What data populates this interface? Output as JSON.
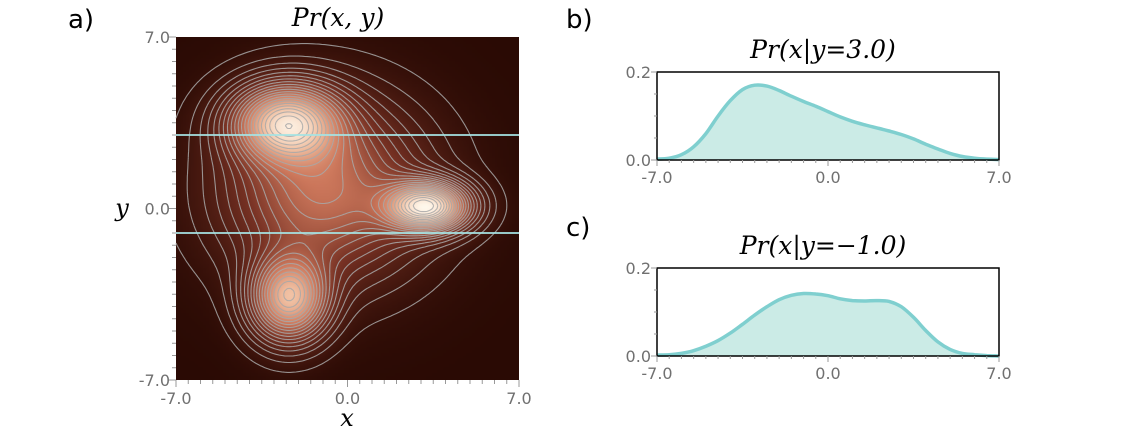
{
  "panels": {
    "a": "a)",
    "b": "b)",
    "c": "c)"
  },
  "chart_data": [
    {
      "id": "a",
      "type": "heatmap",
      "title": "Pr(x, y)",
      "xlabel": "x",
      "ylabel": "y",
      "xlim": [
        -7.0,
        7.0
      ],
      "ylim": [
        -7.0,
        7.0
      ],
      "xticks": [
        "-7.0",
        "0.0",
        "7.0"
      ],
      "yticks": [
        "-7.0",
        "0.0",
        "7.0"
      ],
      "components": [
        {
          "mx": -2.5,
          "my": 3.5,
          "sx": 1.4,
          "sy": 1.0,
          "w": 0.9
        },
        {
          "mx": 3.2,
          "my": 0.1,
          "sx": 1.1,
          "sy": 0.65,
          "w": 1.05
        },
        {
          "mx": -2.4,
          "my": -3.6,
          "sx": 1.0,
          "sy": 1.1,
          "w": 0.8
        },
        {
          "mx": -1.0,
          "my": 0.8,
          "sx": 2.5,
          "sy": 2.2,
          "w": 0.5
        }
      ],
      "slice_lines_y": [
        3.0,
        -1.0
      ],
      "colors": {
        "dark": "#2a0a04",
        "light": "#fff8ec",
        "contour": "#a8a8a8",
        "slice": "#a6e3e3"
      }
    },
    {
      "id": "b",
      "type": "area",
      "title": "Pr(x|y=3.0)",
      "xlim": [
        -7.0,
        7.0
      ],
      "ylim": [
        0.0,
        0.2
      ],
      "xticks": [
        "-7.0",
        "0.0",
        "7.0"
      ],
      "yticks": [
        "0.0",
        "0.2"
      ],
      "x": [
        -7,
        -6.5,
        -6,
        -5.5,
        -5,
        -4.5,
        -4,
        -3.5,
        -3,
        -2.5,
        -2,
        -1.5,
        -1,
        -0.5,
        0,
        0.5,
        1,
        1.5,
        2,
        2.5,
        3,
        3.5,
        4,
        4.5,
        5,
        5.5,
        6,
        6.5,
        7
      ],
      "values": [
        0.002,
        0.004,
        0.012,
        0.03,
        0.06,
        0.1,
        0.135,
        0.16,
        0.17,
        0.168,
        0.158,
        0.145,
        0.133,
        0.122,
        0.11,
        0.098,
        0.088,
        0.08,
        0.073,
        0.066,
        0.058,
        0.048,
        0.036,
        0.025,
        0.015,
        0.008,
        0.004,
        0.002,
        0.001
      ],
      "colors": {
        "line": "#7fcfcf",
        "fill": "#cbebe6"
      }
    },
    {
      "id": "c",
      "type": "area",
      "title": "Pr(x|y=−1.0)",
      "xlim": [
        -7.0,
        7.0
      ],
      "ylim": [
        0.0,
        0.2
      ],
      "xticks": [
        "-7.0",
        "0.0",
        "7.0"
      ],
      "yticks": [
        "0.0",
        "0.2"
      ],
      "x": [
        -7,
        -6.5,
        -6,
        -5.5,
        -5,
        -4.5,
        -4,
        -3.5,
        -3,
        -2.5,
        -2,
        -1.5,
        -1,
        -0.5,
        0,
        0.5,
        1,
        1.5,
        2,
        2.5,
        3,
        3.5,
        4,
        4.5,
        5,
        5.5,
        6,
        6.5,
        7
      ],
      "values": [
        0.002,
        0.003,
        0.006,
        0.012,
        0.022,
        0.035,
        0.052,
        0.072,
        0.093,
        0.112,
        0.128,
        0.138,
        0.142,
        0.141,
        0.137,
        0.13,
        0.126,
        0.125,
        0.126,
        0.124,
        0.112,
        0.088,
        0.058,
        0.032,
        0.015,
        0.006,
        0.003,
        0.001,
        0.0
      ],
      "colors": {
        "line": "#7fcfcf",
        "fill": "#cbebe6"
      }
    }
  ]
}
